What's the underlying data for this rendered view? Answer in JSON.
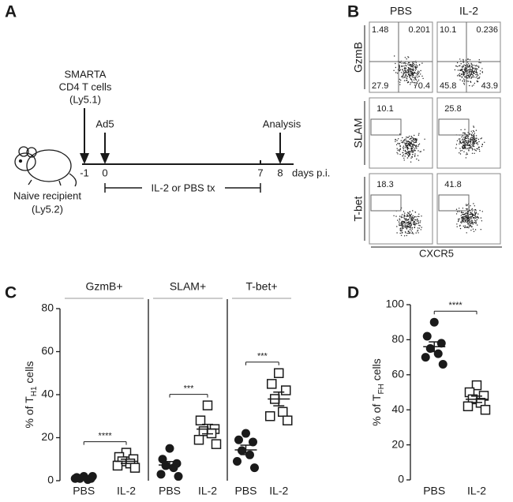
{
  "panel_a": {
    "letter": "A",
    "injection": [
      "SMARTA",
      "CD4 T cells",
      "(Ly5.1)"
    ],
    "ad5": "Ad5",
    "analysis": "Analysis",
    "ticks": [
      "-1",
      "0",
      "7",
      "8"
    ],
    "axis_unit": "days p.i.",
    "treatment": "IL-2 or PBS tx",
    "recipient": [
      "Naive recipient",
      "(Ly5.2)"
    ]
  },
  "panel_b": {
    "letter": "B",
    "columns": [
      "PBS",
      "IL-2"
    ],
    "rows": [
      "GzmB",
      "SLAM",
      "T-bet"
    ],
    "x_label": "CXCR5",
    "quadrants": [
      [
        1.48,
        0.201,
        27.9,
        70.4
      ],
      [
        10.1,
        0.236,
        45.8,
        43.9
      ]
    ],
    "gate_values": [
      [
        10.1,
        25.8
      ],
      [
        18.3,
        41.8
      ]
    ]
  },
  "chart_data": [
    {
      "type": "scatter",
      "panel": "C",
      "ylabel": [
        "% of T",
        "H1",
        " cells"
      ],
      "ylim": [
        0,
        80
      ],
      "yticks": [
        0,
        20,
        40,
        60,
        80
      ],
      "groups": [
        {
          "title": "GzmB+",
          "significance": "****",
          "series": [
            {
              "name": "PBS",
              "marker": "circle",
              "color": "#1a1a1a",
              "values": [
                2,
                1.5,
                1,
                1,
                0.5,
                1,
                2
              ],
              "mean": 1.3,
              "sem": 0.4
            },
            {
              "name": "IL-2",
              "marker": "square",
              "color": "#1a1a1a",
              "values": [
                13,
                11,
                10,
                9,
                8,
                7,
                6
              ],
              "mean": 9,
              "sem": 1
            }
          ]
        },
        {
          "title": "SLAM+",
          "significance": "***",
          "series": [
            {
              "name": "PBS",
              "marker": "circle",
              "color": "#1a1a1a",
              "values": [
                15,
                10,
                8,
                7,
                6,
                3,
                2
              ],
              "mean": 7.3,
              "sem": 1.6
            },
            {
              "name": "IL-2",
              "marker": "square",
              "color": "#1a1a1a",
              "values": [
                35,
                28,
                24,
                23,
                22,
                19,
                17
              ],
              "mean": 24,
              "sem": 2.2
            }
          ]
        },
        {
          "title": "T-bet+",
          "significance": "***",
          "series": [
            {
              "name": "PBS",
              "marker": "circle",
              "color": "#1a1a1a",
              "values": [
                22,
                19,
                18,
                14,
                12,
                9,
                6
              ],
              "mean": 14.3,
              "sem": 2.2
            },
            {
              "name": "IL-2",
              "marker": "square",
              "color": "#1a1a1a",
              "values": [
                50,
                45,
                42,
                38,
                32,
                30,
                28
              ],
              "mean": 38,
              "sem": 3.2
            }
          ]
        }
      ]
    },
    {
      "type": "scatter",
      "panel": "D",
      "ylabel": [
        "% of T",
        "FH",
        " cells"
      ],
      "ylim": [
        0,
        100
      ],
      "yticks": [
        0,
        20,
        40,
        60,
        80,
        100
      ],
      "groups": [
        {
          "significance": "****",
          "series": [
            {
              "name": "PBS",
              "marker": "circle",
              "color": "#1a1a1a",
              "values": [
                90,
                82,
                78,
                75,
                72,
                70,
                66
              ],
              "mean": 76,
              "sem": 2.8
            },
            {
              "name": "IL-2",
              "marker": "square",
              "color": "#1a1a1a",
              "values": [
                54,
                50,
                48,
                46,
                44,
                42,
                40
              ],
              "mean": 46,
              "sem": 1.8
            }
          ]
        }
      ]
    }
  ]
}
